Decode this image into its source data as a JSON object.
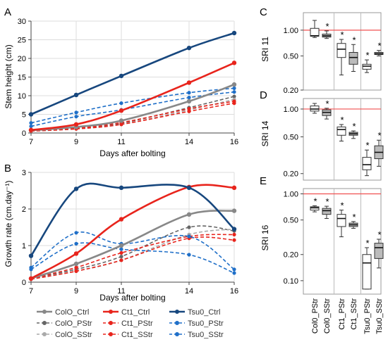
{
  "chart_data": [
    {
      "type": "line",
      "panel": "A",
      "xlabel": "Days after bolting",
      "ylabel": "Stem height (cm)",
      "x": [
        7,
        9,
        11,
        14,
        16
      ],
      "xticks": [
        "7",
        "9",
        "11",
        "14",
        "16"
      ],
      "ylim": [
        0,
        30
      ],
      "yticks": [
        "0",
        "5",
        "10",
        "15",
        "20",
        "25",
        "30"
      ],
      "grid": true,
      "series": [
        {
          "name": "ColO_Ctrl",
          "color": "#888888",
          "dash": "solid",
          "values": [
            0.7,
            1.6,
            3.3,
            8.5,
            13.0
          ]
        },
        {
          "name": "ColO_PStr",
          "color": "#666666",
          "dash": "dashed",
          "values": [
            0.6,
            1.3,
            2.6,
            6.8,
            9.8
          ]
        },
        {
          "name": "ColO_SStr",
          "color": "#aaaaaa",
          "dash": "dashed",
          "values": [
            0.5,
            1.1,
            2.3,
            6.2,
            9.0
          ]
        },
        {
          "name": "Ct1_Ctrl",
          "color": "#e8241c",
          "dash": "solid",
          "values": [
            0.8,
            2.3,
            6.0,
            13.5,
            18.8
          ]
        },
        {
          "name": "Ct1_PStr",
          "color": "#e8241c",
          "dash": "dashed",
          "values": [
            0.6,
            1.3,
            2.8,
            6.5,
            8.5
          ]
        },
        {
          "name": "Ct1_SStr",
          "color": "#e8241c",
          "dash": "dashed",
          "values": [
            0.5,
            1.1,
            2.3,
            5.8,
            8.0
          ]
        },
        {
          "name": "Tsu0_Ctrl",
          "color": "#17477e",
          "dash": "solid",
          "values": [
            5.0,
            10.2,
            15.3,
            22.8,
            26.8
          ]
        },
        {
          "name": "Tsu0_PStr",
          "color": "#1f6fc8",
          "dash": "dashed",
          "values": [
            2.7,
            5.5,
            8.0,
            10.8,
            12.0
          ]
        },
        {
          "name": "Tsu0_SStr",
          "color": "#1f6fc8",
          "dash": "dashed",
          "values": [
            1.8,
            4.4,
            6.2,
            9.5,
            11.0
          ]
        }
      ]
    },
    {
      "type": "line",
      "panel": "B",
      "xlabel": "Days after bolting",
      "ylabel": "Growth rate (cm.day⁻¹)",
      "x": [
        7,
        9,
        11,
        14,
        16
      ],
      "xticks": [
        "7",
        "9",
        "11",
        "14",
        "16"
      ],
      "ylim": [
        0,
        3
      ],
      "yticks": [
        "0",
        "1",
        "2",
        "3"
      ],
      "grid": true,
      "series": [
        {
          "name": "ColO_Ctrl",
          "color": "#888888",
          "dash": "solid",
          "values": [
            0.1,
            0.5,
            1.0,
            1.85,
            1.95
          ]
        },
        {
          "name": "ColO_PStr",
          "color": "#666666",
          "dash": "dashed",
          "values": [
            0.1,
            0.35,
            0.7,
            1.5,
            1.4
          ]
        },
        {
          "name": "ColO_SStr",
          "color": "#aaaaaa",
          "dash": "dashed",
          "values": [
            0.08,
            0.3,
            0.6,
            1.3,
            1.45
          ]
        },
        {
          "name": "Ct1_Ctrl",
          "color": "#e8241c",
          "dash": "solid",
          "values": [
            0.1,
            0.78,
            1.72,
            2.6,
            2.58
          ]
        },
        {
          "name": "Ct1_PStr",
          "color": "#e8241c",
          "dash": "dashed",
          "values": [
            0.1,
            0.4,
            0.8,
            1.25,
            1.3
          ]
        },
        {
          "name": "Ct1_SStr",
          "color": "#e8241c",
          "dash": "dashed",
          "values": [
            0.08,
            0.3,
            0.6,
            1.2,
            1.15
          ]
        },
        {
          "name": "Tsu0_Ctrl",
          "color": "#17477e",
          "dash": "solid",
          "values": [
            0.72,
            2.55,
            2.58,
            2.58,
            1.45
          ]
        },
        {
          "name": "Tsu0_PStr",
          "color": "#1f6fc8",
          "dash": "dashed",
          "values": [
            0.4,
            1.35,
            1.05,
            1.25,
            0.35
          ]
        },
        {
          "name": "Tsu0_SStr",
          "color": "#1f6fc8",
          "dash": "dashed",
          "values": [
            0.35,
            1.05,
            0.9,
            0.75,
            0.25
          ]
        }
      ]
    },
    {
      "type": "boxplot",
      "panel": "C",
      "ylabel": "SRI 11",
      "scale": "log",
      "ylim": [
        0.2,
        1.6
      ],
      "yticks": [
        1.0,
        0.5,
        0.2
      ],
      "ytick_labels": [
        "1.00",
        "0.50",
        "0.20"
      ],
      "reference_line": 1.0,
      "groups": [
        {
          "name": "Col0_PStr",
          "fill": "#ffffff",
          "min": 0.82,
          "q1": 0.85,
          "median": 0.86,
          "q3": 1.05,
          "max": 1.3,
          "star": false
        },
        {
          "name": "Col0_SStr",
          "fill": "#bbbbbb",
          "min": 0.8,
          "q1": 0.83,
          "median": 0.86,
          "q3": 0.9,
          "max": 0.98,
          "star": true
        },
        {
          "name": "Ct1_PStr",
          "fill": "#ffffff",
          "min": 0.3,
          "q1": 0.48,
          "median": 0.6,
          "q3": 0.7,
          "max": 0.78,
          "star": true
        },
        {
          "name": "Ct1_SStr",
          "fill": "#bbbbbb",
          "min": 0.33,
          "q1": 0.4,
          "median": 0.48,
          "q3": 0.55,
          "max": 0.68,
          "star": true
        },
        {
          "name": "Tsu0_PStr",
          "fill": "#ffffff",
          "min": 0.32,
          "q1": 0.35,
          "median": 0.38,
          "q3": 0.4,
          "max": 0.45,
          "star": true
        },
        {
          "name": "Tsu0_SStr",
          "fill": "#bbbbbb",
          "min": 0.5,
          "q1": 0.52,
          "median": 0.53,
          "q3": 0.55,
          "max": 0.58,
          "star": true
        }
      ]
    },
    {
      "type": "boxplot",
      "panel": "D",
      "ylabel": "SRI 14",
      "scale": "log",
      "ylim": [
        0.17,
        1.3
      ],
      "yticks": [
        1.0,
        0.5,
        0.2
      ],
      "ytick_labels": [
        "1.00",
        "0.50",
        "0.20"
      ],
      "reference_line": 1.0,
      "groups": [
        {
          "name": "Col0_PStr",
          "fill": "#ffffff",
          "min": 0.9,
          "q1": 0.95,
          "median": 1.0,
          "q3": 1.08,
          "max": 1.15,
          "star": false
        },
        {
          "name": "Col0_SStr",
          "fill": "#bbbbbb",
          "min": 0.78,
          "q1": 0.85,
          "median": 0.92,
          "q3": 0.98,
          "max": 1.02,
          "star": true
        },
        {
          "name": "Ct1_PStr",
          "fill": "#ffffff",
          "min": 0.45,
          "q1": 0.52,
          "median": 0.6,
          "q3": 0.64,
          "max": 0.68,
          "star": true
        },
        {
          "name": "Ct1_SStr",
          "fill": "#bbbbbb",
          "min": 0.48,
          "q1": 0.52,
          "median": 0.54,
          "q3": 0.56,
          "max": 0.58,
          "star": true
        },
        {
          "name": "Tsu0_PStr",
          "fill": "#ffffff",
          "min": 0.19,
          "q1": 0.22,
          "median": 0.25,
          "q3": 0.3,
          "max": 0.36,
          "star": true
        },
        {
          "name": "Tsu0_SStr",
          "fill": "#bbbbbb",
          "min": 0.24,
          "q1": 0.29,
          "median": 0.34,
          "q3": 0.4,
          "max": 0.46,
          "star": true
        }
      ]
    },
    {
      "type": "boxplot",
      "panel": "E",
      "ylabel": "SRI 16",
      "scale": "log",
      "ylim": [
        0.07,
        1.15
      ],
      "yticks": [
        1.0,
        0.5,
        0.2,
        0.1
      ],
      "ytick_labels": [
        "1.00",
        "0.50",
        "0.20",
        "0.10"
      ],
      "reference_line": 1.0,
      "groups": [
        {
          "name": "Col0_PStr",
          "fill": "#ffffff",
          "min": 0.62,
          "q1": 0.65,
          "median": 0.69,
          "q3": 0.71,
          "max": 0.73,
          "star": true
        },
        {
          "name": "Col0_SStr",
          "fill": "#bbbbbb",
          "min": 0.52,
          "q1": 0.58,
          "median": 0.64,
          "q3": 0.68,
          "max": 0.72,
          "star": true
        },
        {
          "name": "Ct1_PStr",
          "fill": "#ffffff",
          "min": 0.32,
          "q1": 0.42,
          "median": 0.52,
          "q3": 0.58,
          "max": 0.65,
          "star": true
        },
        {
          "name": "Ct1_SStr",
          "fill": "#bbbbbb",
          "min": 0.4,
          "q1": 0.42,
          "median": 0.44,
          "q3": 0.46,
          "max": 0.48,
          "star": true
        },
        {
          "name": "Tsu0_PStr",
          "fill": "#ffffff",
          "min": 0.08,
          "q1": 0.08,
          "median": 0.16,
          "q3": 0.2,
          "max": 0.24,
          "star": true
        },
        {
          "name": "Tsu0_SStr",
          "fill": "#bbbbbb",
          "min": 0.14,
          "q1": 0.18,
          "median": 0.24,
          "q3": 0.27,
          "max": 0.3,
          "star": true
        }
      ]
    }
  ],
  "legend": [
    {
      "name": "ColO_Ctrl",
      "color": "#888888",
      "dash": "solid"
    },
    {
      "name": "Ct1_Ctrl",
      "color": "#e8241c",
      "dash": "solid"
    },
    {
      "name": "Tsu0_Ctrl",
      "color": "#17477e",
      "dash": "solid"
    },
    {
      "name": "ColO_PStr",
      "color": "#666666",
      "dash": "dashed"
    },
    {
      "name": "Ct1_PStr",
      "color": "#e8241c",
      "dash": "dashed"
    },
    {
      "name": "Tsu0_PStr",
      "color": "#1f6fc8",
      "dash": "dashed"
    },
    {
      "name": "ColO_SStr",
      "color": "#aaaaaa",
      "dash": "dashed"
    },
    {
      "name": "Ct1_SStr",
      "color": "#e8241c",
      "dash": "dashed"
    },
    {
      "name": "Tsu0_SStr",
      "color": "#1f6fc8",
      "dash": "dashed"
    }
  ],
  "panel_letters": {
    "A": "A",
    "B": "B",
    "C": "C",
    "D": "D",
    "E": "E"
  },
  "star_symbol": "*"
}
